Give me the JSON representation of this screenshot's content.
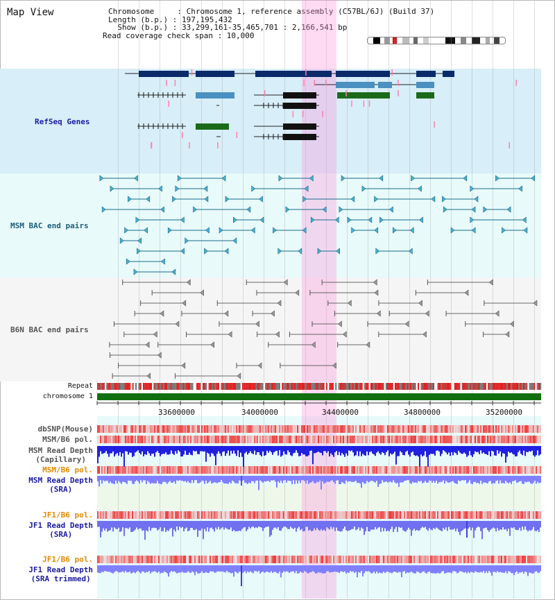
{
  "view_title": "Map View",
  "info": {
    "chromosome": "Chromosome     : Chromosome 1, reference assembly (C57BL/6J) (Build 37)",
    "length": "Length (b.p.) : 197,195,432",
    "show": "  Show (b.p.) : 33,299,161-35,465,701 : 2,166,541 bp",
    "span": "Read coverage check span : 10,000"
  },
  "tracks": {
    "refseq": "RefSeq Genes",
    "msm_bac": "MSM BAC end pairs",
    "b6n_bac": "B6N BAC end pairs",
    "repeat": "Repeat",
    "chromosome": "chromosome 1",
    "dbsnp": "dbSNP(Mouse)",
    "msm_b6_pol": "MSM/B6 pol.",
    "msm_depth_cap_1": "MSM Read Depth",
    "msm_depth_cap_2": "(Capillary)",
    "msm_b6_pol2": "MSM/B6 pol.",
    "msm_depth_sra_1": "MSM Read Depth",
    "msm_depth_sra_2": "(SRA)",
    "jf1_b6_pol": "JF1/B6 pol.",
    "jf1_depth_sra_1": "JF1 Read Depth",
    "jf1_depth_sra_2": "(SRA)",
    "jf1_b6_pol2": "JF1/B6 pol.",
    "jf1_depth_trim_1": "JF1 Read Depth",
    "jf1_depth_trim_2": "(SRA trimmed)"
  },
  "scale": {
    "ticks": [
      "33600000",
      "34000000",
      "34400000",
      "34800000",
      "35200000"
    ]
  },
  "colors": {
    "refseq_bg": "#d8eef8",
    "bac_bg": "#e8fafa",
    "b6n_bg": "#f6f6f6",
    "highlight": "#ffb0e0",
    "chromosome_bar": "#107010",
    "gene_dark": "#0a2a6a",
    "gene_mid": "#4a90c0",
    "gene_green": "#1a6a1a",
    "bac_teal": "#1a6a8a",
    "depth_blue": "#2020e0",
    "depth_light": "#8080ff",
    "pol_red": "#ee4040"
  }
}
